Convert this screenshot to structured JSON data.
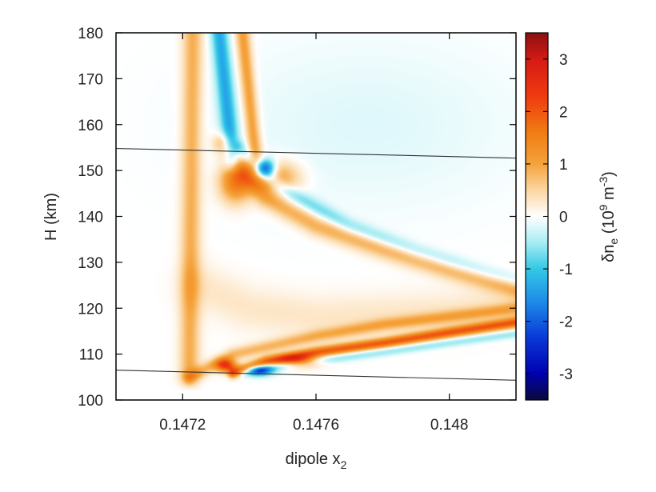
{
  "chart_data": {
    "type": "heatmap",
    "title": "",
    "xlabel": "dipole x",
    "xlabel_sub": "2",
    "ylabel": "H (km)",
    "colorbar_label": "δn",
    "colorbar_label_sub": "e",
    "colorbar_unit_open": " (10",
    "colorbar_unit_exp": "9",
    "colorbar_unit_mid": " m",
    "colorbar_unit_exp2": "-3",
    "colorbar_unit_close": ")",
    "xlim": [
      0.147,
      0.1482
    ],
    "ylim": [
      100,
      180
    ],
    "clim": [
      -3.5,
      3.5
    ],
    "x_ticks": [
      0.1472,
      0.1476,
      0.148
    ],
    "x_tick_labels": [
      "0.1472",
      "0.1476",
      "0.148"
    ],
    "y_ticks": [
      100,
      110,
      120,
      130,
      140,
      150,
      160,
      170,
      180
    ],
    "y_tick_labels": [
      "100",
      "110",
      "120",
      "130",
      "140",
      "150",
      "160",
      "170",
      "180"
    ],
    "colorbar_ticks": [
      -3,
      -2,
      -1,
      0,
      1,
      2,
      3
    ],
    "colorbar_tick_labels": [
      "-3",
      "-2",
      "-1",
      "0",
      "1",
      "2",
      "3"
    ],
    "colorscale": [
      [
        -3.5,
        "#0a0a3a"
      ],
      [
        -3.0,
        "#0000b0"
      ],
      [
        -2.3,
        "#0a3ad8"
      ],
      [
        -1.6,
        "#1e8ee8"
      ],
      [
        -1.0,
        "#33c8e6"
      ],
      [
        -0.5,
        "#a6ecf3"
      ],
      [
        0.0,
        "#ffffff"
      ],
      [
        0.5,
        "#fbd6a2"
      ],
      [
        1.0,
        "#f5a23a"
      ],
      [
        1.6,
        "#f07c14"
      ],
      [
        2.3,
        "#ef3a10"
      ],
      [
        3.0,
        "#d41a14"
      ],
      [
        3.5,
        "#8a1010"
      ]
    ],
    "boundary_lines": [
      {
        "x": [
          0.147,
          0.1482
        ],
        "y": [
          154.8,
          152.7
        ]
      },
      {
        "x": [
          0.147,
          0.1482
        ],
        "y": [
          106.5,
          104.3
        ]
      }
    ],
    "features": [
      {
        "type": "vertical_band",
        "x_top": 0.14723,
        "x_bottom": 0.14722,
        "y_top": 180,
        "y_bottom": 105,
        "value": 0.9,
        "width": 3e-05
      },
      {
        "type": "vertical_band",
        "x_top": 0.14731,
        "x_bottom": 0.14735,
        "y_top": 180,
        "y_bottom": 152,
        "value": -1.3,
        "width": 2.5e-05
      },
      {
        "type": "vertical_band",
        "x_top": 0.14738,
        "x_bottom": 0.14742,
        "y_top": 180,
        "y_bottom": 152,
        "value": 1.1,
        "width": 2.2e-05
      },
      {
        "type": "curve_band",
        "points": [
          [
            0.14732,
            156
          ],
          [
            0.14745,
            144
          ],
          [
            0.1476,
            138
          ],
          [
            0.1478,
            133
          ],
          [
            0.148,
            128.5
          ],
          [
            0.1482,
            124.5
          ]
        ],
        "value": 0.9,
        "width": 2.2
      },
      {
        "type": "curve_band",
        "points": [
          [
            0.14737,
            155
          ],
          [
            0.1475,
            146
          ],
          [
            0.1477,
            138
          ],
          [
            0.1479,
            132.5
          ],
          [
            0.1481,
            128
          ],
          [
            0.1482,
            126
          ]
        ],
        "value": -0.7,
        "width": 1.6
      },
      {
        "type": "curve_band",
        "points": [
          [
            0.14722,
            105
          ],
          [
            0.14735,
            110
          ],
          [
            0.1476,
            114
          ],
          [
            0.1478,
            116.5
          ],
          [
            0.1482,
            120
          ]
        ],
        "value": 0.8,
        "width": 1.4
      },
      {
        "type": "curve_band",
        "points": [
          [
            0.14735,
            106
          ],
          [
            0.14745,
            108.5
          ],
          [
            0.1476,
            110.5
          ],
          [
            0.1478,
            112.5
          ],
          [
            0.148,
            114.8
          ],
          [
            0.1482,
            117
          ]
        ],
        "value": 1.9,
        "width": 1.1
      },
      {
        "type": "curve_band",
        "points": [
          [
            0.14738,
            106
          ],
          [
            0.1475,
            107.5
          ],
          [
            0.1477,
            109.5
          ],
          [
            0.148,
            112.5
          ],
          [
            0.1482,
            114.5
          ]
        ],
        "value": -0.6,
        "width": 0.9
      },
      {
        "type": "curve_band",
        "points": [
          [
            0.14725,
            125
          ],
          [
            0.1474,
            120
          ],
          [
            0.1476,
            118
          ],
          [
            0.148,
            119
          ],
          [
            0.1482,
            121
          ]
        ],
        "value": 0.3,
        "width": 5.0
      },
      {
        "type": "blob",
        "x": 0.14736,
        "y": 147.5,
        "rx": 5e-05,
        "ry": 4.5,
        "value": 1.6
      },
      {
        "type": "blob",
        "x": 0.14748,
        "y": 148.5,
        "rx": 7e-05,
        "ry": 3.5,
        "value": 1.2
      },
      {
        "type": "blob",
        "x": 0.14745,
        "y": 150.5,
        "rx": 3e-05,
        "ry": 2.0,
        "value": -2.0
      },
      {
        "type": "blob",
        "x": 0.14743,
        "y": 106.5,
        "rx": 4e-05,
        "ry": 1.2,
        "value": -2.1
      },
      {
        "type": "blob",
        "x": 0.14733,
        "y": 107.5,
        "rx": 3e-05,
        "ry": 1.4,
        "value": 2.2
      },
      {
        "type": "blob",
        "x": 0.14755,
        "y": 108.5,
        "rx": 6e-05,
        "ry": 1.3,
        "value": 1.7
      },
      {
        "type": "wide_field",
        "x_center": 0.14775,
        "y_center": 160,
        "rx": 0.00045,
        "ry": 18,
        "value": -0.18
      }
    ]
  }
}
